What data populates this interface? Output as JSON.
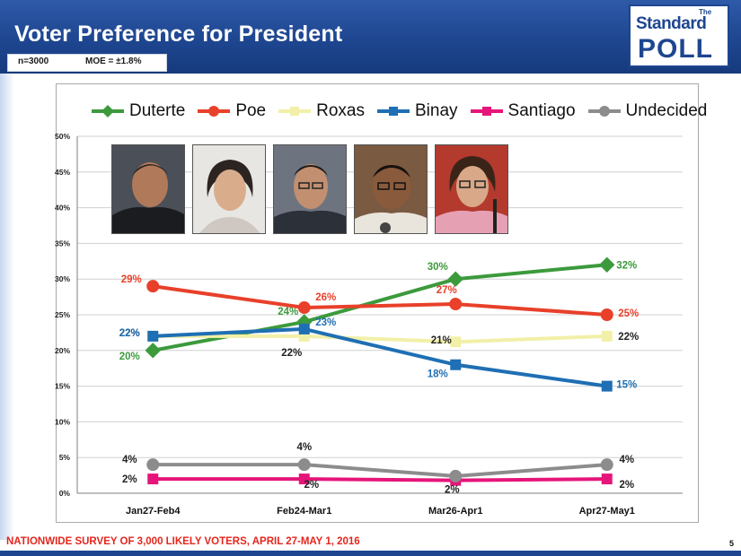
{
  "header": {
    "title": "Voter Preference for President",
    "sample": "n=3000",
    "moe": "MOE = ±1.8%"
  },
  "logo": {
    "the": "The",
    "standard": "Standard",
    "poll": "POLL"
  },
  "footer": {
    "survey_note": "NATIONWIDE SURVEY OF 3,000 LIKELY VOTERS, APRIL 27-MAY 1, 2016",
    "page_number": "5"
  },
  "colors": {
    "header_bg": "#1e4690",
    "footer_text": "#e4261c"
  },
  "chart_data": {
    "type": "line",
    "title": "",
    "xlabel": "",
    "ylabel": "",
    "categories": [
      "Jan27-Feb4",
      "Feb24-Mar1",
      "Mar26-Apr1",
      "Apr27-May1"
    ],
    "y_ticks": [
      "0%",
      "5%",
      "10%",
      "15%",
      "20%",
      "25%",
      "30%",
      "35%",
      "40%",
      "45%",
      "50%"
    ],
    "ylim": [
      0,
      50
    ],
    "grid": true,
    "legend_position": "top",
    "series": [
      {
        "name": "Duterte",
        "color": "#3c9a3c",
        "marker": "diamond",
        "values": [
          20,
          24,
          30,
          32
        ],
        "labels": [
          "20%",
          "24%",
          "30%",
          "32%"
        ]
      },
      {
        "name": "Poe",
        "color": "#e8402a",
        "marker": "circle",
        "values": [
          29,
          26,
          26.5,
          25
        ],
        "labels": [
          "29%",
          "26%",
          "27%",
          "25%"
        ]
      },
      {
        "name": "Roxas",
        "color": "#f2f0a8",
        "marker": "square",
        "values": [
          22,
          22,
          21.2,
          22
        ],
        "labels": [
          "22%",
          "22%",
          "21%",
          "22%"
        ]
      },
      {
        "name": "Binay",
        "color": "#1f6fb4",
        "marker": "square",
        "values": [
          22,
          23,
          18,
          15
        ],
        "labels": [
          "22%",
          "23%",
          "18%",
          "15%"
        ]
      },
      {
        "name": "Santiago",
        "color": "#e6157a",
        "marker": "square",
        "values": [
          2,
          2,
          1.8,
          2
        ],
        "labels": [
          "2%",
          "2%",
          "2%",
          "2%"
        ]
      },
      {
        "name": "Undecided",
        "color": "#8c8c8c",
        "marker": "circle",
        "values": [
          4,
          4,
          2.4,
          4
        ],
        "labels": [
          "4%",
          "4%",
          "",
          "4%"
        ]
      }
    ]
  }
}
